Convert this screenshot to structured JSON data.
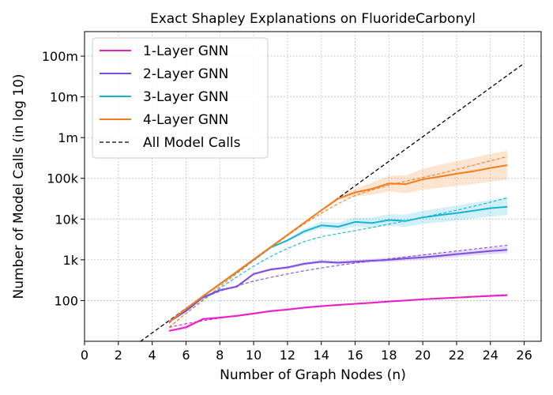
{
  "chart_data": {
    "type": "line",
    "title": "Exact Shapley Explanations on FluorideCarbonyl",
    "xlabel": "Number of Graph Nodes (n)",
    "ylabel": "Number of Model Calls (in log 10)",
    "xlim": [
      0,
      27
    ],
    "ylim": [
      10,
      400000000
    ],
    "yscale": "log",
    "grid": true,
    "legend_position": "top-left",
    "x_ticks": [
      0,
      2,
      4,
      6,
      8,
      10,
      12,
      14,
      16,
      18,
      20,
      22,
      24,
      26
    ],
    "x_tick_labels": [
      "0",
      "2",
      "4",
      "6",
      "8",
      "10",
      "12",
      "14",
      "16",
      "18",
      "20",
      "22",
      "24",
      "26"
    ],
    "y_ticks": [
      100,
      1000,
      10000,
      100000,
      1000000,
      10000000,
      100000000
    ],
    "y_tick_labels": [
      "100",
      "1k",
      "10k",
      "100k",
      "1m",
      "10m",
      "100m"
    ],
    "x": [
      5,
      6,
      7,
      8,
      9,
      10,
      11,
      12,
      13,
      14,
      15,
      16,
      17,
      18,
      19,
      20,
      21,
      22,
      23,
      24,
      25
    ],
    "series": [
      {
        "name": "1-Layer GNN",
        "color": "#e91ec7",
        "values": [
          18,
          22,
          35,
          38,
          42,
          48,
          55,
          60,
          67,
          73,
          78,
          83,
          88,
          95,
          100,
          107,
          113,
          118,
          124,
          130,
          135
        ],
        "band_low": [
          17,
          20,
          33,
          36,
          40,
          45,
          52,
          57,
          63,
          69,
          74,
          79,
          84,
          90,
          96,
          103,
          108,
          113,
          119,
          124,
          129
        ],
        "band_high": [
          19,
          24,
          38,
          41,
          45,
          51,
          58,
          64,
          71,
          77,
          83,
          88,
          93,
          100,
          106,
          113,
          119,
          125,
          131,
          137,
          143
        ],
        "fit": [
          22,
          27,
          32,
          37,
          42,
          48,
          54,
          60,
          66,
          72,
          78,
          84,
          90,
          96,
          102,
          108,
          114,
          120,
          127,
          133,
          140
        ]
      },
      {
        "name": "2-Layer GNN",
        "color": "#7c4ddc",
        "values": [
          30,
          55,
          120,
          180,
          220,
          450,
          580,
          650,
          800,
          900,
          850,
          900,
          950,
          1000,
          1080,
          1150,
          1250,
          1380,
          1500,
          1650,
          1750
        ],
        "band_low": [
          29,
          52,
          112,
          168,
          205,
          420,
          540,
          600,
          730,
          820,
          770,
          810,
          850,
          890,
          950,
          1000,
          1080,
          1180,
          1270,
          1380,
          1450
        ],
        "band_high": [
          31,
          58,
          128,
          192,
          236,
          480,
          620,
          700,
          880,
          990,
          940,
          1000,
          1060,
          1130,
          1230,
          1320,
          1450,
          1620,
          1780,
          1980,
          2150
        ],
        "fit": [
          28,
          60,
          115,
          170,
          230,
          300,
          370,
          450,
          540,
          630,
          730,
          830,
          940,
          1050,
          1180,
          1320,
          1470,
          1640,
          1830,
          2040,
          2280
        ]
      },
      {
        "name": "3-Layer GNN",
        "color": "#17b3d6",
        "values": [
          30,
          62,
          128,
          250,
          500,
          1000,
          2000,
          3000,
          5000,
          7000,
          6500,
          8500,
          8000,
          9500,
          9000,
          11000,
          12500,
          14000,
          16000,
          18500,
          20000
        ],
        "band_low": [
          29,
          60,
          124,
          242,
          485,
          970,
          1940,
          2800,
          4400,
          5900,
          5300,
          6600,
          6000,
          6900,
          6400,
          7600,
          8400,
          9200,
          10300,
          11600,
          12400
        ],
        "band_high": [
          31,
          64,
          132,
          258,
          515,
          1030,
          2060,
          3250,
          5800,
          8500,
          8200,
          11000,
          10800,
          13200,
          12900,
          16000,
          18500,
          21500,
          25000,
          29500,
          35000
        ],
        "fit": [
          22,
          48,
          100,
          200,
          380,
          700,
          1200,
          1900,
          2800,
          3700,
          4400,
          5200,
          6200,
          7500,
          9000,
          11000,
          13500,
          16500,
          20500,
          26000,
          33000
        ]
      },
      {
        "name": "4-Layer GNN",
        "color": "#f57c1a",
        "values": [
          30,
          62,
          128,
          256,
          512,
          1024,
          2048,
          4096,
          8192,
          16384,
          32000,
          45000,
          55000,
          75000,
          72000,
          95000,
          110000,
          130000,
          150000,
          180000,
          210000
        ],
        "band_low": [
          29,
          60,
          124,
          248,
          496,
          990,
          1990,
          3980,
          7900,
          15700,
          29000,
          36000,
          39000,
          48000,
          43000,
          53000,
          58000,
          65000,
          72000,
          83000,
          93000
        ],
        "band_high": [
          31,
          64,
          132,
          264,
          528,
          1058,
          2106,
          4210,
          8480,
          17100,
          36000,
          56000,
          78000,
          115000,
          120000,
          170000,
          215000,
          265000,
          320000,
          400000,
          480000
        ],
        "fit": [
          22,
          48,
          105,
          220,
          460,
          950,
          1950,
          3900,
          7700,
          14000,
          24000,
          38000,
          52000,
          68000,
          85000,
          105000,
          130000,
          165000,
          210000,
          270000,
          340000
        ]
      }
    ],
    "reference": {
      "name": "All Model Calls",
      "color": "#000000",
      "x": [
        3.3,
        26
      ],
      "values": [
        9.85,
        67108864
      ]
    }
  }
}
